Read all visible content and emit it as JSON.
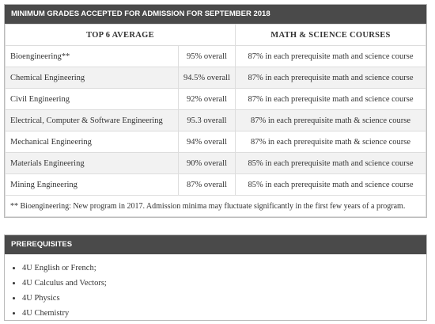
{
  "grades": {
    "title": "MINIMUM GRADES ACCEPTED FOR ADMISSION FOR SEPTEMBER 2018",
    "headers": [
      "TOP 6 AVERAGE",
      "MATH & SCIENCE COURSES"
    ],
    "rows": [
      [
        "Bioengineering**",
        "95% overall",
        "87% in each prerequisite math and science course"
      ],
      [
        "Chemical Engineering",
        "94.5% overall",
        "87% in each prerequisite math and science course"
      ],
      [
        "Civil Engineering",
        "92% overall",
        "87% in each prerequisite math and science course"
      ],
      [
        "Electrical, Computer & Software Engineering",
        "95.3 overall",
        "87% in each prerequisite math & science course"
      ],
      [
        "Mechanical Engineering",
        "94% overall",
        "87% in each prerequisite math & science course"
      ],
      [
        "Materials Engineering",
        "90% overall",
        "85% in each prerequisite math and science course"
      ],
      [
        "Mining Engineering",
        "87% overall",
        "85% in each prerequisite math and science course"
      ]
    ],
    "footnote": "** Bioengineering: New program in 2017. Admission minima may fluctuate significantly in the first few years of a program."
  },
  "prerequisites": {
    "title": "PREREQUISITES",
    "items": [
      "4U English or French;",
      "4U Calculus and Vectors;",
      "4U Physics",
      "4U Chemistry"
    ]
  }
}
